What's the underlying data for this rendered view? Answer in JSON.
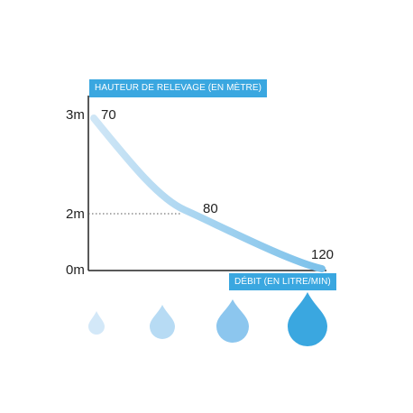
{
  "chart_data": {
    "type": "line",
    "title": "",
    "ylabel": "HAUTEUR DE RELEVAGE (EN MÈTRE)",
    "xlabel": "DÉBIT (EN LITRE/MIN)",
    "yticks": [
      "3m",
      "2m",
      "0m"
    ],
    "ytick_values": [
      3,
      2,
      0
    ],
    "ylim": [
      0,
      3
    ],
    "x": [
      70,
      80,
      120
    ],
    "y": [
      3,
      2,
      0
    ],
    "data_labels": [
      "70",
      "80",
      "120"
    ],
    "reference_line": {
      "y": 2,
      "style": "dotted"
    },
    "colors": {
      "curve_start": "#cfe6f6",
      "curve_end": "#7cc1ea",
      "label_box": "#3aa7e0"
    }
  },
  "icons": [
    {
      "name": "water-drop-small-icon",
      "color": "#d3e8f8"
    },
    {
      "name": "water-drop-medium-icon",
      "color": "#b7dbf4"
    },
    {
      "name": "water-drop-large-icon",
      "color": "#8cc6ee"
    },
    {
      "name": "water-drop-xlarge-icon",
      "color": "#3aa7e0"
    }
  ]
}
